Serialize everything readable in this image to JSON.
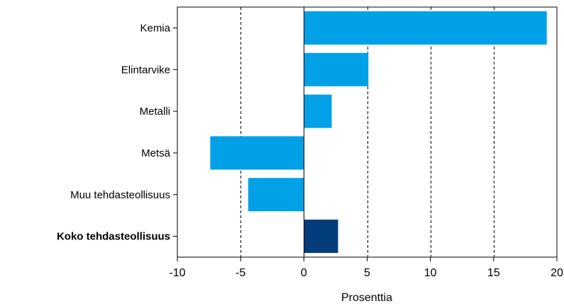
{
  "chart_data": {
    "type": "bar",
    "orientation": "horizontal",
    "categories": [
      "Kemia",
      "Elintarvike",
      "Metalli",
      "Metsä",
      "Muu tehdasteollisuus",
      "Koko tehdasteollisuus"
    ],
    "values": [
      19.2,
      5.1,
      2.2,
      -7.4,
      -4.4,
      2.7
    ],
    "highlight_category": "Koko tehdasteollisuus",
    "xlabel": "Prosenttia",
    "ylabel": "",
    "title": "",
    "xlim": [
      -10,
      20
    ],
    "xticks": [
      -10,
      -5,
      0,
      5,
      10,
      15,
      20
    ],
    "xtick_labels": [
      "-10",
      "-5",
      "0",
      "5",
      "10",
      "15",
      "20"
    ],
    "grid": "vertical dashed",
    "colors": {
      "bar": "#00a1e6",
      "highlight_bar": "#003d7a",
      "grid": "#000000",
      "axis": "#000000"
    }
  }
}
